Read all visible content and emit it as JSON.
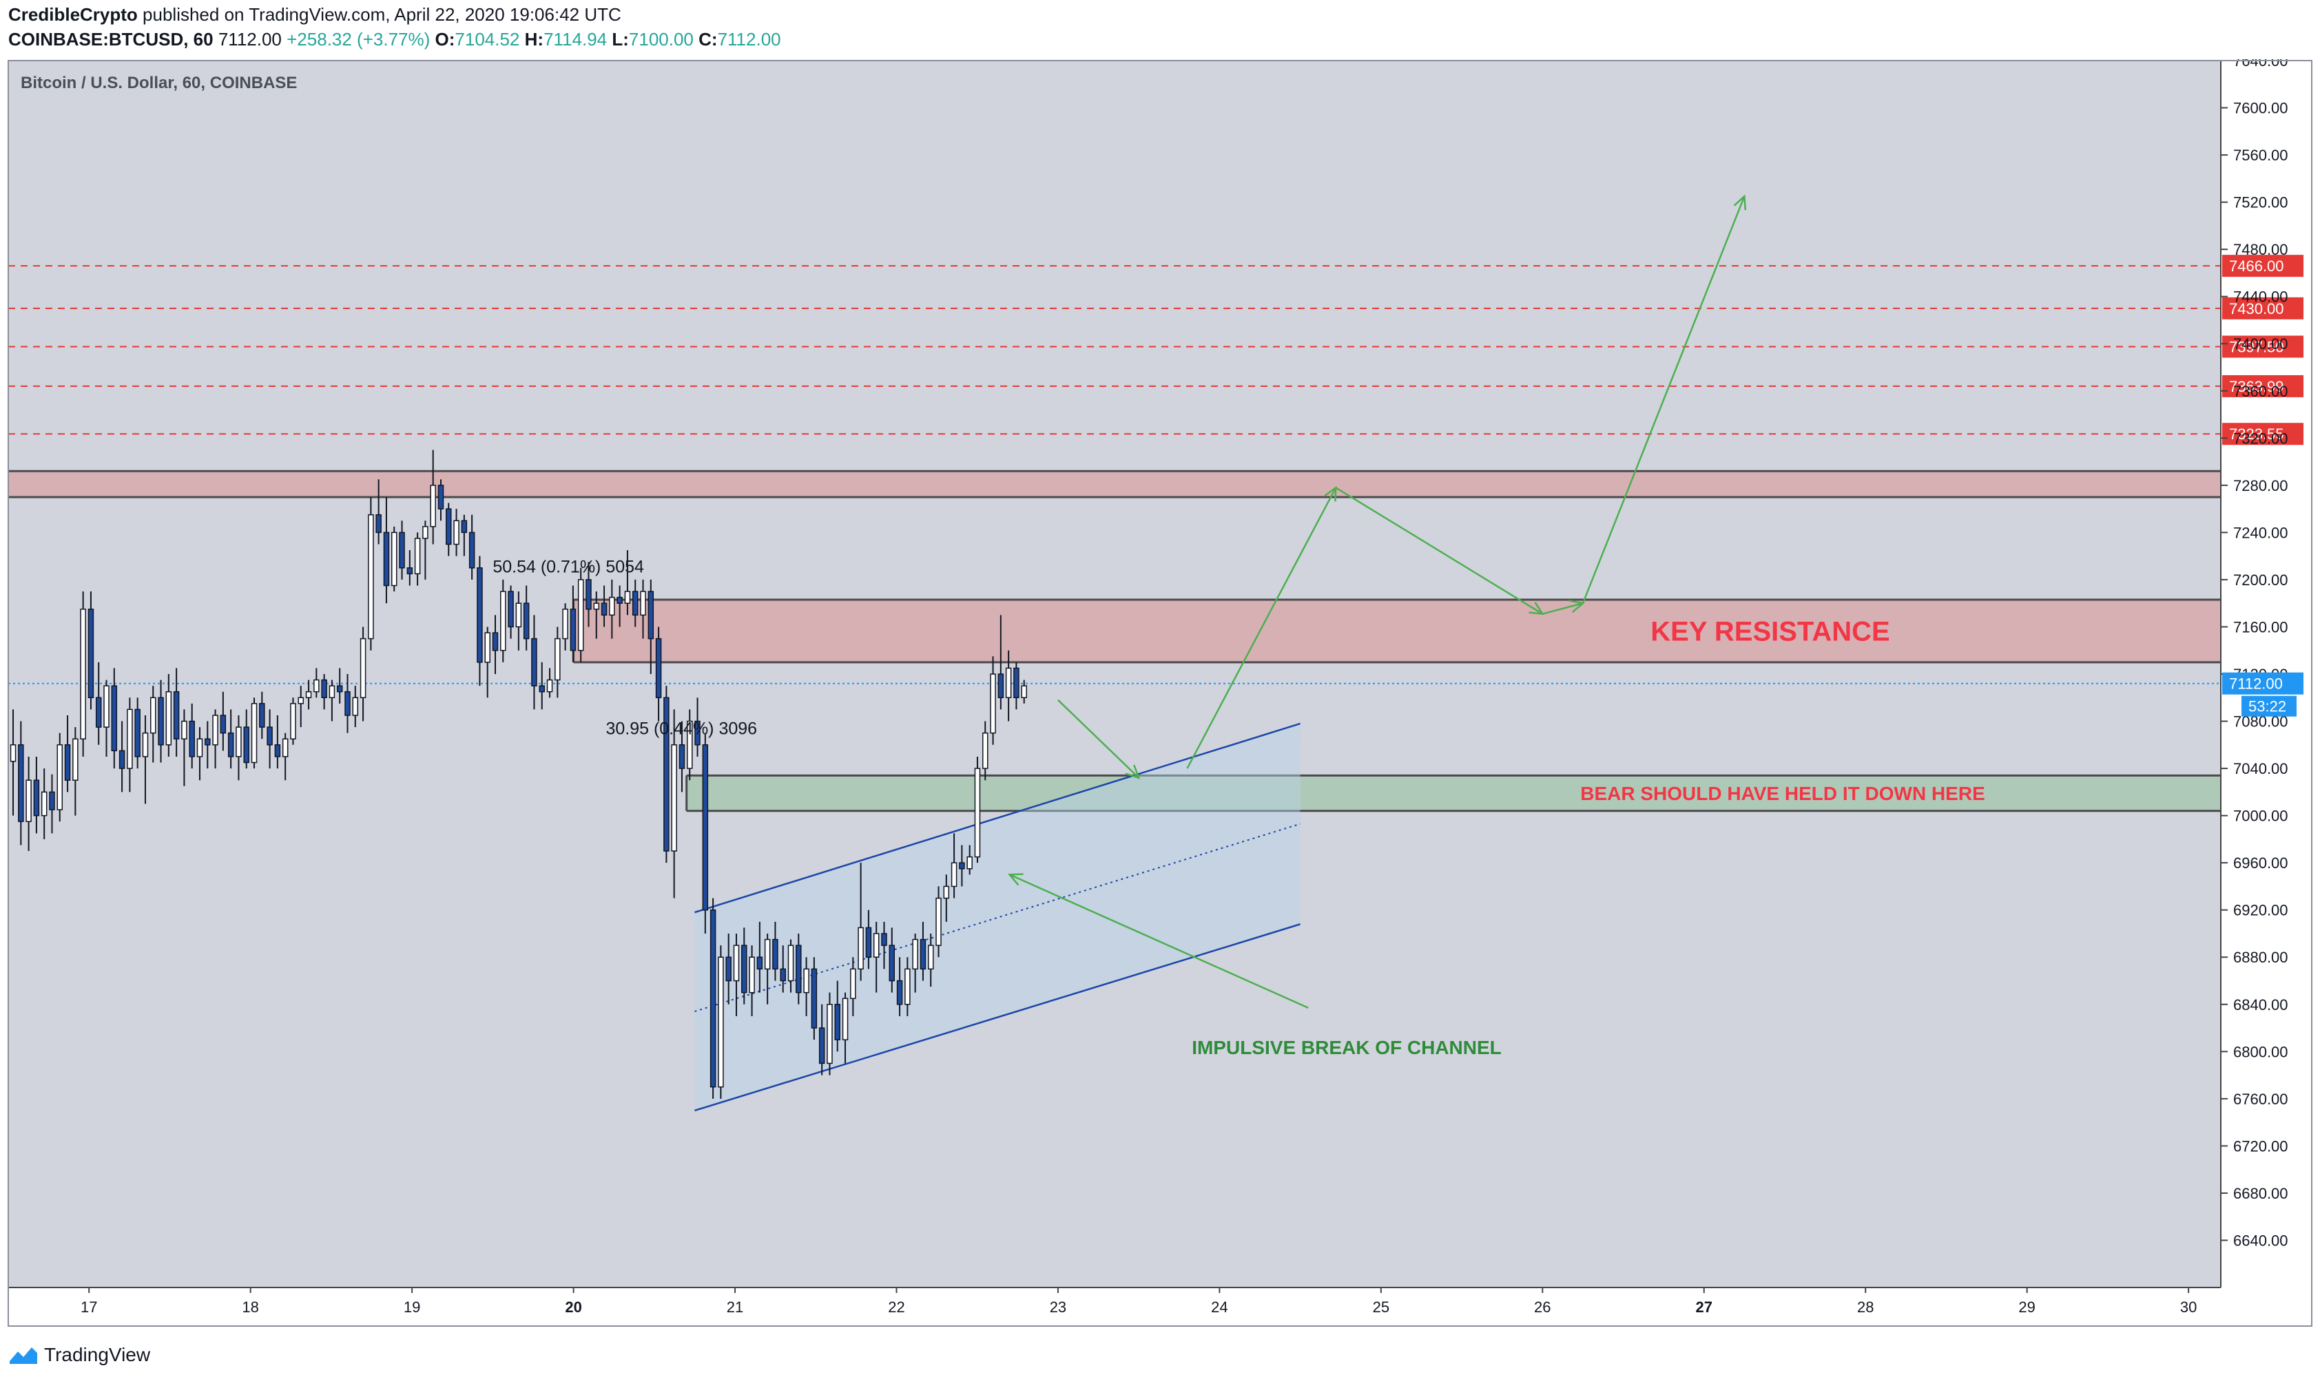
{
  "header": {
    "author": "CredibleCrypto",
    "published": " published on TradingView.com, April 22, 2020 19:06:42 UTC",
    "symbol": "COINBASE:BTCUSD, 60",
    "last": "7112.00",
    "change": "+258.32 (+3.77%)",
    "o_label": "O:",
    "o_value": "7104.52",
    "h_label": "H:",
    "h_value": "7114.94",
    "l_label": "L:",
    "l_value": "7100.00",
    "c_label": "C:",
    "c_value": "7112.00"
  },
  "footer": {
    "logo_text": "TradingView"
  },
  "colors": {
    "background": "#d1d4dc",
    "up": "#ffffff",
    "down": "#1e4b9e",
    "wick": "#131722",
    "resistance_fill": "#d8a9ad",
    "support_fill": "#a9c7b2",
    "red_line": "#e53935",
    "green_arrow": "#4caf50",
    "channel": "#1a46a8",
    "last_price_badge": "#2196f3",
    "label_red": "#f23645",
    "label_green": "#2e8b3a"
  },
  "chart_data": {
    "type": "candlestick",
    "title": "Bitcoin / U.S. Dollar, 60, COINBASE",
    "ylim": [
      6600,
      7640
    ],
    "y_ticks": [
      6640,
      6680,
      6720,
      6760,
      6800,
      6840,
      6880,
      6920,
      6960,
      7000,
      7040,
      7080,
      7120,
      7160,
      7200,
      7240,
      7280,
      7320,
      7360,
      7400,
      7440,
      7480,
      7520,
      7560,
      7600,
      7640
    ],
    "x_ticks": [
      "17",
      "18",
      "19",
      "20",
      "21",
      "22",
      "23",
      "24",
      "25",
      "26",
      "27",
      "28",
      "29",
      "30"
    ],
    "bold_x_ticks": [
      "20",
      "27"
    ],
    "horizontal_levels": [
      7466.0,
      7430.0,
      7397.5,
      7363.99,
      7323.55
    ],
    "last_price": 7112.0,
    "countdown": "53:22",
    "zones": [
      {
        "name": "upper-resistance-band",
        "from": 7270,
        "to": 7292,
        "start_day": 16.5
      },
      {
        "name": "key-resistance",
        "from": 7130,
        "to": 7183,
        "start_day": 20.0,
        "label": "KEY RESISTANCE"
      },
      {
        "name": "bear-support",
        "from": 7004,
        "to": 7034,
        "start_day": 20.7,
        "label": "BEAR SHOULD HAVE HELD IT DOWN HERE"
      }
    ],
    "channel": {
      "upper": [
        [
          20.75,
          6918
        ],
        [
          24.5,
          7078
        ]
      ],
      "lower": [
        [
          20.75,
          6750
        ],
        [
          24.5,
          6908
        ]
      ],
      "mid": [
        [
          20.75,
          6834
        ],
        [
          24.5,
          6993
        ]
      ]
    },
    "measurements": [
      {
        "text": "50.54 (0.71%) 5054",
        "day": 19.5,
        "price": 7206
      },
      {
        "text": "30.95 (0.44%) 3096",
        "day": 20.2,
        "price": 7069
      }
    ],
    "annotations": [
      {
        "text": "IMPULSIVE BREAK OF CHANNEL"
      }
    ],
    "projection_path": [
      [
        23.0,
        7098
      ],
      [
        23.5,
        7032
      ],
      [
        23.8,
        7040
      ],
      [
        24.72,
        7278
      ],
      [
        26.0,
        7171
      ],
      [
        26.25,
        7180
      ],
      [
        27.25,
        7525
      ]
    ],
    "impulse_arrow": [
      [
        24.55,
        6837
      ],
      [
        22.7,
        6950
      ]
    ],
    "candles": [
      [
        7046,
        7090,
        7000,
        7060
      ],
      [
        7060,
        7080,
        6975,
        6995
      ],
      [
        6995,
        7050,
        6970,
        7030
      ],
      [
        7030,
        7050,
        6985,
        7000
      ],
      [
        7000,
        7040,
        6980,
        7020
      ],
      [
        7020,
        7035,
        6985,
        7005
      ],
      [
        7005,
        7070,
        6995,
        7060
      ],
      [
        7060,
        7085,
        7020,
        7030
      ],
      [
        7030,
        7075,
        7000,
        7065
      ],
      [
        7065,
        7190,
        7050,
        7175
      ],
      [
        7175,
        7190,
        7090,
        7100
      ],
      [
        7100,
        7130,
        7060,
        7075
      ],
      [
        7075,
        7115,
        7050,
        7110
      ],
      [
        7110,
        7125,
        7040,
        7055
      ],
      [
        7055,
        7080,
        7020,
        7040
      ],
      [
        7040,
        7100,
        7020,
        7090
      ],
      [
        7090,
        7100,
        7040,
        7050
      ],
      [
        7050,
        7085,
        7010,
        7070
      ],
      [
        7070,
        7110,
        7045,
        7100
      ],
      [
        7100,
        7115,
        7045,
        7060
      ],
      [
        7060,
        7120,
        7050,
        7105
      ],
      [
        7105,
        7125,
        7050,
        7065
      ],
      [
        7065,
        7090,
        7025,
        7080
      ],
      [
        7080,
        7095,
        7040,
        7050
      ],
      [
        7050,
        7075,
        7030,
        7065
      ],
      [
        7065,
        7080,
        7040,
        7060
      ],
      [
        7060,
        7090,
        7040,
        7085
      ],
      [
        7085,
        7105,
        7055,
        7070
      ],
      [
        7070,
        7090,
        7040,
        7050
      ],
      [
        7050,
        7085,
        7030,
        7075
      ],
      [
        7075,
        7090,
        7040,
        7045
      ],
      [
        7045,
        7100,
        7040,
        7095
      ],
      [
        7095,
        7105,
        7065,
        7075
      ],
      [
        7075,
        7090,
        7040,
        7060
      ],
      [
        7060,
        7085,
        7040,
        7050
      ],
      [
        7050,
        7070,
        7030,
        7065
      ],
      [
        7065,
        7100,
        7060,
        7095
      ],
      [
        7095,
        7110,
        7075,
        7100
      ],
      [
        7100,
        7115,
        7090,
        7105
      ],
      [
        7105,
        7125,
        7100,
        7115
      ],
      [
        7115,
        7120,
        7090,
        7100
      ],
      [
        7100,
        7115,
        7080,
        7110
      ],
      [
        7110,
        7125,
        7095,
        7105
      ],
      [
        7105,
        7120,
        7070,
        7085
      ],
      [
        7085,
        7110,
        7075,
        7100
      ],
      [
        7100,
        7160,
        7080,
        7150
      ],
      [
        7150,
        7270,
        7140,
        7255
      ],
      [
        7255,
        7285,
        7230,
        7240
      ],
      [
        7240,
        7270,
        7180,
        7195
      ],
      [
        7195,
        7245,
        7190,
        7240
      ],
      [
        7240,
        7250,
        7200,
        7210
      ],
      [
        7210,
        7225,
        7195,
        7205
      ],
      [
        7205,
        7240,
        7195,
        7235
      ],
      [
        7235,
        7250,
        7200,
        7245
      ],
      [
        7245,
        7310,
        7230,
        7280
      ],
      [
        7280,
        7285,
        7250,
        7260
      ],
      [
        7260,
        7265,
        7220,
        7230
      ],
      [
        7230,
        7260,
        7220,
        7250
      ],
      [
        7250,
        7255,
        7220,
        7240
      ],
      [
        7240,
        7255,
        7200,
        7210
      ],
      [
        7210,
        7220,
        7110,
        7130
      ],
      [
        7130,
        7160,
        7100,
        7155
      ],
      [
        7155,
        7170,
        7120,
        7140
      ],
      [
        7140,
        7200,
        7130,
        7190
      ],
      [
        7190,
        7195,
        7150,
        7160
      ],
      [
        7160,
        7190,
        7140,
        7180
      ],
      [
        7180,
        7195,
        7140,
        7150
      ],
      [
        7150,
        7170,
        7090,
        7110
      ],
      [
        7110,
        7130,
        7090,
        7105
      ],
      [
        7105,
        7125,
        7100,
        7115
      ],
      [
        7115,
        7160,
        7100,
        7150
      ],
      [
        7150,
        7180,
        7140,
        7175
      ],
      [
        7175,
        7195,
        7130,
        7140
      ],
      [
        7140,
        7210,
        7130,
        7200
      ],
      [
        7200,
        7215,
        7160,
        7175
      ],
      [
        7175,
        7190,
        7150,
        7180
      ],
      [
        7180,
        7195,
        7160,
        7170
      ],
      [
        7170,
        7200,
        7150,
        7185
      ],
      [
        7185,
        7195,
        7160,
        7180
      ],
      [
        7180,
        7225,
        7170,
        7190
      ],
      [
        7190,
        7200,
        7160,
        7170
      ],
      [
        7170,
        7200,
        7150,
        7190
      ],
      [
        7190,
        7200,
        7120,
        7150
      ],
      [
        7150,
        7160,
        7080,
        7100
      ],
      [
        7100,
        7110,
        6960,
        6970
      ],
      [
        6970,
        7090,
        6930,
        7060
      ],
      [
        7060,
        7080,
        7020,
        7040
      ],
      [
        7040,
        7090,
        7030,
        7080
      ],
      [
        7080,
        7100,
        7050,
        7060
      ],
      [
        7060,
        7070,
        6900,
        6920
      ],
      [
        6920,
        6930,
        6760,
        6770
      ],
      [
        6770,
        6890,
        6760,
        6880
      ],
      [
        6880,
        6900,
        6840,
        6860
      ],
      [
        6860,
        6900,
        6830,
        6890
      ],
      [
        6890,
        6905,
        6840,
        6850
      ],
      [
        6850,
        6890,
        6830,
        6880
      ],
      [
        6880,
        6910,
        6850,
        6870
      ],
      [
        6870,
        6900,
        6840,
        6895
      ],
      [
        6895,
        6910,
        6860,
        6870
      ],
      [
        6870,
        6890,
        6850,
        6860
      ],
      [
        6860,
        6895,
        6850,
        6890
      ],
      [
        6890,
        6900,
        6840,
        6850
      ],
      [
        6850,
        6880,
        6830,
        6870
      ],
      [
        6870,
        6880,
        6810,
        6820
      ],
      [
        6820,
        6840,
        6780,
        6790
      ],
      [
        6790,
        6850,
        6780,
        6840
      ],
      [
        6840,
        6860,
        6800,
        6810
      ],
      [
        6810,
        6850,
        6790,
        6845
      ],
      [
        6845,
        6880,
        6830,
        6870
      ],
      [
        6870,
        6960,
        6860,
        6905
      ],
      [
        6905,
        6920,
        6870,
        6880
      ],
      [
        6880,
        6910,
        6850,
        6900
      ],
      [
        6900,
        6910,
        6870,
        6890
      ],
      [
        6890,
        6905,
        6850,
        6860
      ],
      [
        6860,
        6880,
        6830,
        6840
      ],
      [
        6840,
        6880,
        6830,
        6870
      ],
      [
        6870,
        6900,
        6850,
        6895
      ],
      [
        6895,
        6910,
        6860,
        6870
      ],
      [
        6870,
        6900,
        6855,
        6890
      ],
      [
        6890,
        6940,
        6880,
        6930
      ],
      [
        6930,
        6950,
        6910,
        6940
      ],
      [
        6940,
        6985,
        6930,
        6960
      ],
      [
        6960,
        6975,
        6940,
        6955
      ],
      [
        6955,
        6975,
        6950,
        6965
      ],
      [
        6965,
        7050,
        6960,
        7040
      ],
      [
        7040,
        7080,
        7030,
        7070
      ],
      [
        7070,
        7135,
        7060,
        7120
      ],
      [
        7120,
        7170,
        7090,
        7100
      ],
      [
        7100,
        7140,
        7080,
        7125
      ],
      [
        7125,
        7130,
        7090,
        7100
      ],
      [
        7100,
        7115,
        7095,
        7110
      ]
    ]
  }
}
